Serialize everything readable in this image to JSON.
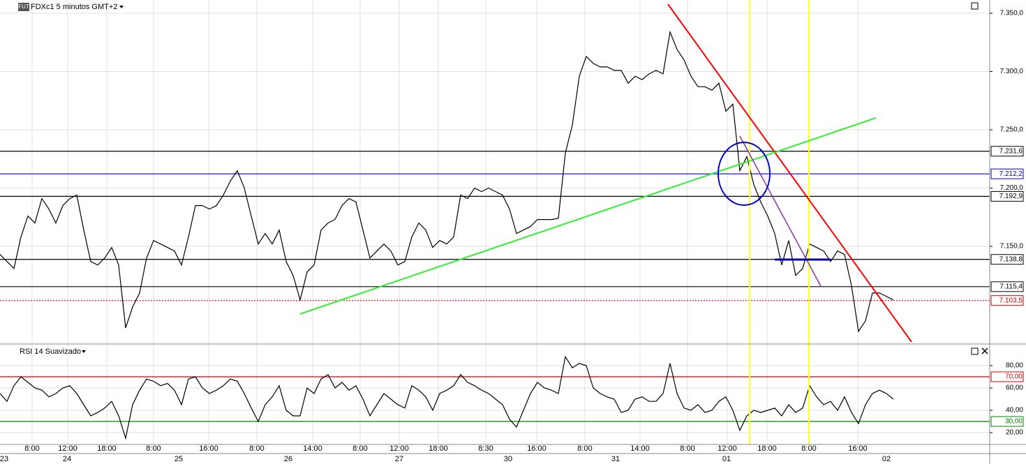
{
  "chart_data": [
    {
      "type": "line",
      "title": "FDXc1 5 minutos GMT+2",
      "badge": "FUT",
      "color": "#000000",
      "values": [
        7143,
        7137,
        7131,
        7158,
        7176,
        7170,
        7191,
        7182,
        7170,
        7185,
        7191,
        7194,
        7164,
        7137,
        7134,
        7140,
        7149,
        7134,
        7080,
        7098,
        7110,
        7140,
        7155,
        7152,
        7149,
        7146,
        7134,
        7158,
        7185,
        7185,
        7182,
        7185,
        7194,
        7206,
        7215,
        7200,
        7176,
        7152,
        7161,
        7152,
        7164,
        7137,
        7125,
        7104,
        7128,
        7134,
        7164,
        7170,
        7173,
        7185,
        7191,
        7188,
        7164,
        7140,
        7146,
        7152,
        7146,
        7134,
        7137,
        7158,
        7170,
        7164,
        7149,
        7155,
        7152,
        7158,
        7194,
        7191,
        7200,
        7197,
        7200,
        7197,
        7194,
        7182,
        7161,
        7164,
        7167,
        7173,
        7173,
        7173,
        7174,
        7230,
        7254,
        7296,
        7313,
        7307,
        7304,
        7304,
        7301,
        7301,
        7290,
        7296,
        7293,
        7298,
        7301,
        7298,
        7334,
        7319,
        7310,
        7296,
        7287,
        7287,
        7284,
        7290,
        7266,
        7272,
        7215,
        7227,
        7203,
        7188,
        7176,
        7161,
        7134,
        7155,
        7125,
        7131,
        7152,
        7149,
        7146,
        7137,
        7146,
        7143,
        7116,
        7077,
        7086,
        7110,
        7110,
        7107,
        7104
      ],
      "ylim": [
        7066.8,
        7361.4
      ],
      "yticks": [
        {
          "value": 7350,
          "label": "7.350,0"
        },
        {
          "value": 7300,
          "label": "7.300,0"
        },
        {
          "value": 7250,
          "label": "7.250,0"
        },
        {
          "value": 7200,
          "label": "7.200,0"
        },
        {
          "value": 7150,
          "label": "7.150,0"
        }
      ],
      "levels": [
        {
          "value": 7231.6,
          "label": "7.231,6",
          "color": "#000000"
        },
        {
          "value": 7212.2,
          "label": "7.212,2",
          "color": "#0000cc"
        },
        {
          "value": 7192.9,
          "label": "7.192,9",
          "color": "#000000"
        },
        {
          "value": 7138.8,
          "label": "7.138,8",
          "color": "#000000"
        },
        {
          "value": 7115.4,
          "label": "7.115,4",
          "color": "#000000"
        },
        {
          "value": 7103.5,
          "label": "7.103,5",
          "color": "#cc0000"
        }
      ],
      "xlim": [
        0,
        141.8
      ],
      "xticks": [
        {
          "value": 4.6,
          "label": "8:00"
        },
        {
          "value": 9.7,
          "label": "12:00"
        },
        {
          "value": 15.3,
          "label": "18:00"
        },
        {
          "value": 22,
          "label": "8:00"
        },
        {
          "value": 29.9,
          "label": "16:00"
        },
        {
          "value": 36.8,
          "label": "8:00"
        },
        {
          "value": 44.8,
          "label": "14:00"
        },
        {
          "value": 51.6,
          "label": "8:00"
        },
        {
          "value": 57.2,
          "label": "12:00"
        },
        {
          "value": 62.8,
          "label": "18:00"
        },
        {
          "value": 69.6,
          "label": "8:30"
        },
        {
          "value": 76.9,
          "label": "16:00"
        },
        {
          "value": 83.8,
          "label": "8:00"
        },
        {
          "value": 91.7,
          "label": "14:00"
        },
        {
          "value": 98.5,
          "label": "8:00"
        },
        {
          "value": 104.2,
          "label": "12:00"
        },
        {
          "value": 109.9,
          "label": "18:00"
        },
        {
          "value": 115.9,
          "label": "8:00"
        },
        {
          "value": 122.9,
          "label": "16:00"
        }
      ],
      "dateticks": [
        {
          "value": 0.6,
          "label": "23"
        },
        {
          "value": 9.6,
          "label": "24"
        },
        {
          "value": 25.6,
          "label": "25"
        },
        {
          "value": 41.3,
          "label": "26"
        },
        {
          "value": 57.2,
          "label": "27"
        },
        {
          "value": 72.8,
          "label": "30"
        },
        {
          "value": 88.2,
          "label": "31"
        },
        {
          "value": 104.1,
          "label": "01"
        },
        {
          "value": 127,
          "label": "02"
        }
      ]
    },
    {
      "type": "line",
      "title": "RSI 14 Suavizado",
      "color": "#000000",
      "values": [
        55,
        48,
        62,
        70,
        65,
        60,
        58,
        52,
        55,
        60,
        62,
        55,
        45,
        35,
        38,
        42,
        48,
        35,
        15,
        45,
        58,
        68,
        66,
        62,
        64,
        58,
        45,
        68,
        70,
        60,
        55,
        58,
        62,
        68,
        66,
        55,
        42,
        30,
        45,
        52,
        62,
        40,
        35,
        35,
        60,
        55,
        68,
        72,
        60,
        65,
        58,
        62,
        50,
        35,
        45,
        55,
        50,
        45,
        42,
        62,
        58,
        52,
        40,
        55,
        58,
        62,
        72,
        65,
        62,
        58,
        55,
        50,
        45,
        32,
        25,
        40,
        55,
        65,
        60,
        58,
        55,
        88,
        78,
        82,
        80,
        60,
        55,
        52,
        50,
        38,
        40,
        50,
        52,
        48,
        48,
        55,
        82,
        55,
        42,
        40,
        45,
        38,
        40,
        48,
        52,
        40,
        22,
        35,
        40,
        38,
        40,
        42,
        35,
        45,
        38,
        42,
        62,
        52,
        45,
        48,
        40,
        52,
        38,
        28,
        45,
        55,
        58,
        55,
        50
      ],
      "ylim": [
        9.4,
        98.1
      ],
      "yticks": [
        {
          "value": 80,
          "label": "80,00"
        },
        {
          "value": 60,
          "label": "60,00"
        },
        {
          "value": 40,
          "label": "40,00"
        },
        {
          "value": 20,
          "label": "20,00"
        }
      ],
      "levels": [
        {
          "value": 70,
          "label": "70,00",
          "color": "#cc0000"
        },
        {
          "value": 30,
          "label": "30,00",
          "color": "#008800"
        }
      ]
    }
  ]
}
